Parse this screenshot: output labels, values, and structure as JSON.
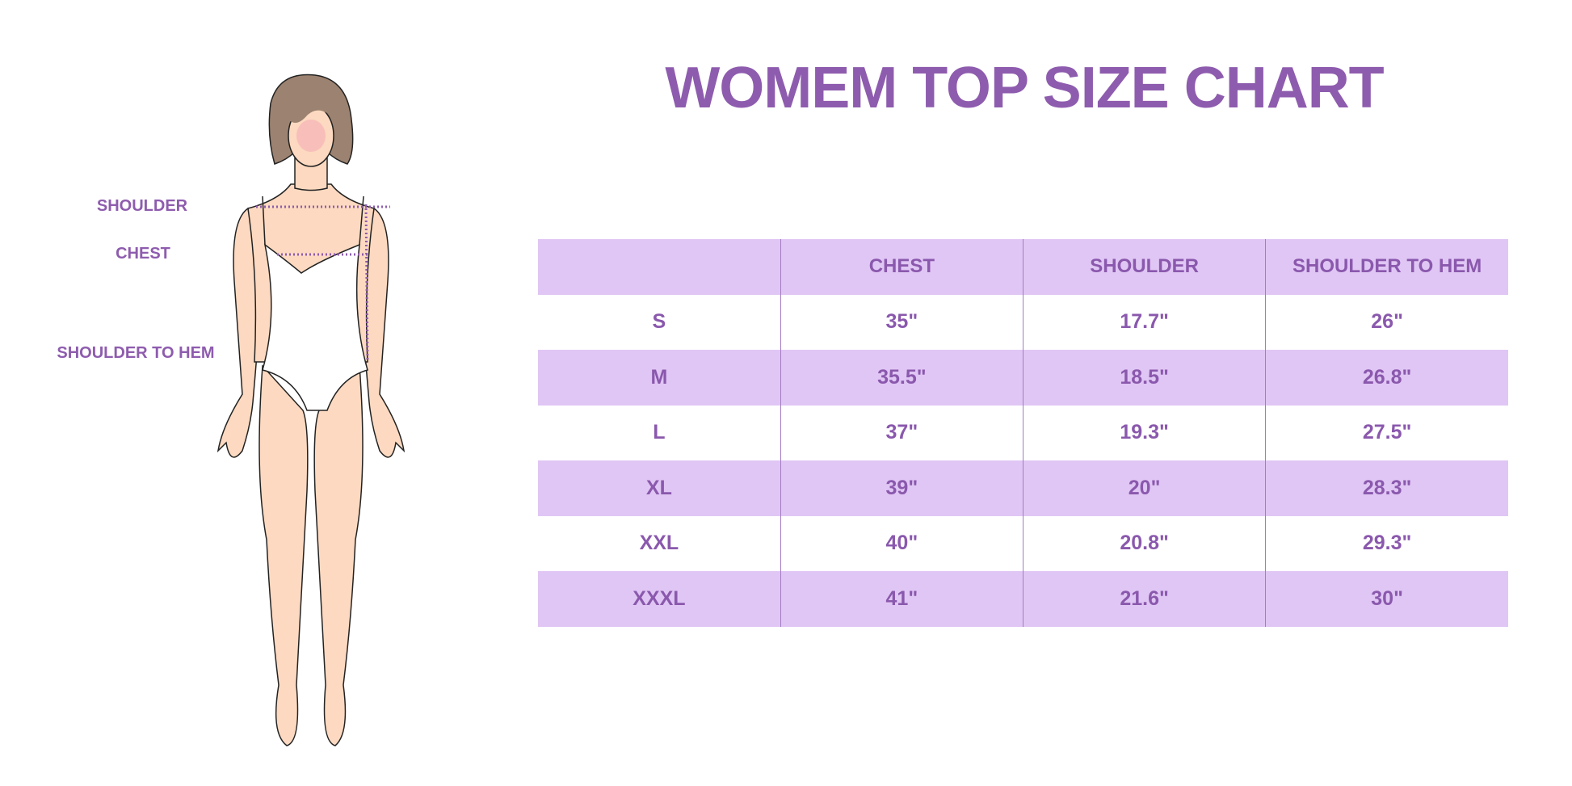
{
  "title": "WOMEM TOP SIZE CHART",
  "figure_labels": {
    "shoulder": "SHOULDER",
    "chest": "CHEST",
    "shoulder_to_hem": "SHOULDER TO HEM"
  },
  "table": {
    "headers": [
      "",
      "CHEST",
      "SHOULDER",
      "SHOULDER TO HEM"
    ],
    "rows": [
      [
        "S",
        "35\"",
        "17.7\"",
        "26\""
      ],
      [
        "M",
        "35.5\"",
        "18.5\"",
        "26.8\""
      ],
      [
        "L",
        "37\"",
        "19.3\"",
        "27.5\""
      ],
      [
        "XL",
        "39\"",
        "20\"",
        "28.3\""
      ],
      [
        "XXL",
        "40\"",
        "20.8\"",
        "29.3\""
      ],
      [
        "XXXL",
        "41\"",
        "21.6\"",
        "30\""
      ]
    ]
  },
  "colors": {
    "accent": "#8e5cae",
    "band": "#e0c6f4",
    "skin": "#fcd9c0",
    "hair": "#9c8270"
  }
}
